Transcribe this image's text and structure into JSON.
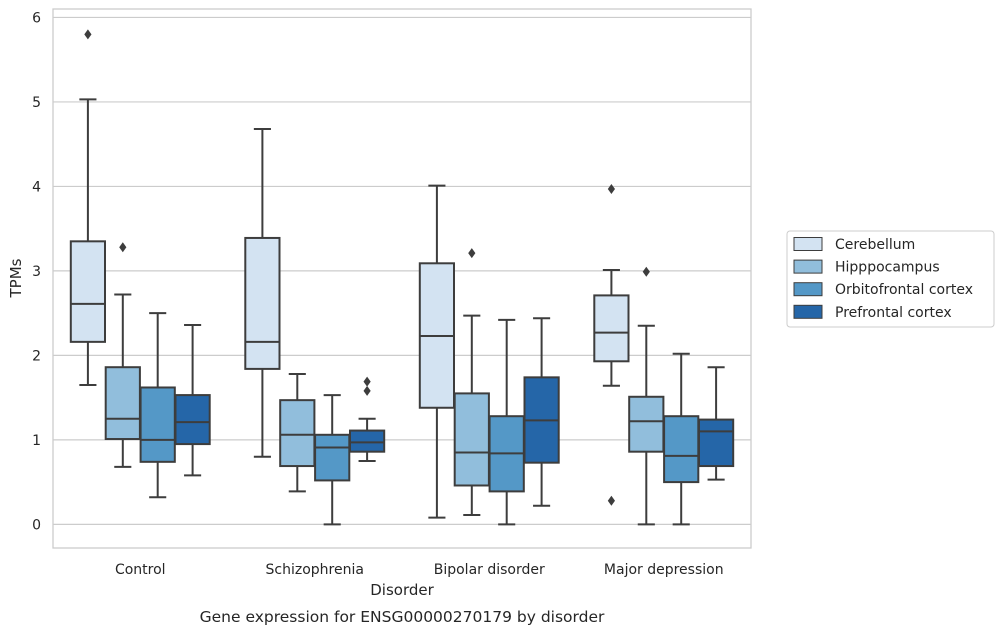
{
  "caption": "Gene expression for ENSG00000270179 by disorder",
  "chart_data": {
    "type": "box",
    "xlabel": "Disorder",
    "ylabel": "TPMs",
    "ylim": [
      -0.28,
      6.1
    ],
    "yticks": [
      0,
      1,
      2,
      3,
      4,
      5,
      6
    ],
    "categories": [
      "Control",
      "Schizophrenia",
      "Bipolar disorder",
      "Major depression"
    ],
    "grid": true,
    "legend_position": "right-center",
    "series": [
      {
        "name": "Cerebellum",
        "color": "#d3e3f2",
        "boxes": [
          {
            "q1": 2.16,
            "median": 2.61,
            "q3": 3.35,
            "whislo": 1.65,
            "whishi": 5.03,
            "fliers": [
              5.8
            ]
          },
          {
            "q1": 1.84,
            "median": 2.16,
            "q3": 3.39,
            "whislo": 0.8,
            "whishi": 4.68,
            "fliers": []
          },
          {
            "q1": 1.38,
            "median": 2.23,
            "q3": 3.09,
            "whislo": 0.08,
            "whishi": 4.01,
            "fliers": []
          },
          {
            "q1": 1.93,
            "median": 2.27,
            "q3": 2.71,
            "whislo": 1.64,
            "whishi": 3.01,
            "fliers": [
              3.97,
              0.28
            ]
          }
        ]
      },
      {
        "name": "Hipppocampus",
        "color": "#91bedc",
        "boxes": [
          {
            "q1": 1.01,
            "median": 1.25,
            "q3": 1.86,
            "whislo": 0.68,
            "whishi": 2.72,
            "fliers": [
              3.28
            ]
          },
          {
            "q1": 0.69,
            "median": 1.06,
            "q3": 1.47,
            "whislo": 0.39,
            "whishi": 1.78,
            "fliers": []
          },
          {
            "q1": 0.46,
            "median": 0.85,
            "q3": 1.55,
            "whislo": 0.11,
            "whishi": 2.47,
            "fliers": [
              3.21
            ]
          },
          {
            "q1": 0.86,
            "median": 1.22,
            "q3": 1.51,
            "whislo": 0.0,
            "whishi": 2.35,
            "fliers": [
              2.99
            ]
          }
        ]
      },
      {
        "name": "Orbitofrontal cortex",
        "color": "#5498c7",
        "boxes": [
          {
            "q1": 0.74,
            "median": 1.0,
            "q3": 1.62,
            "whislo": 0.32,
            "whishi": 2.5,
            "fliers": []
          },
          {
            "q1": 0.52,
            "median": 0.91,
            "q3": 1.06,
            "whislo": 0.0,
            "whishi": 1.53,
            "fliers": []
          },
          {
            "q1": 0.39,
            "median": 0.84,
            "q3": 1.28,
            "whislo": 0.0,
            "whishi": 2.42,
            "fliers": []
          },
          {
            "q1": 0.5,
            "median": 0.81,
            "q3": 1.28,
            "whislo": 0.0,
            "whishi": 2.02,
            "fliers": []
          }
        ]
      },
      {
        "name": "Prefrontal cortex",
        "color": "#2566a8",
        "boxes": [
          {
            "q1": 0.95,
            "median": 1.21,
            "q3": 1.53,
            "whislo": 0.58,
            "whishi": 2.36,
            "fliers": []
          },
          {
            "q1": 0.86,
            "median": 0.97,
            "q3": 1.11,
            "whislo": 0.75,
            "whishi": 1.25,
            "fliers": [
              1.58,
              1.69
            ]
          },
          {
            "q1": 0.73,
            "median": 1.23,
            "q3": 1.74,
            "whislo": 0.22,
            "whishi": 2.44,
            "fliers": []
          },
          {
            "q1": 0.69,
            "median": 1.1,
            "q3": 1.24,
            "whislo": 0.53,
            "whishi": 1.86,
            "fliers": []
          }
        ]
      }
    ]
  }
}
